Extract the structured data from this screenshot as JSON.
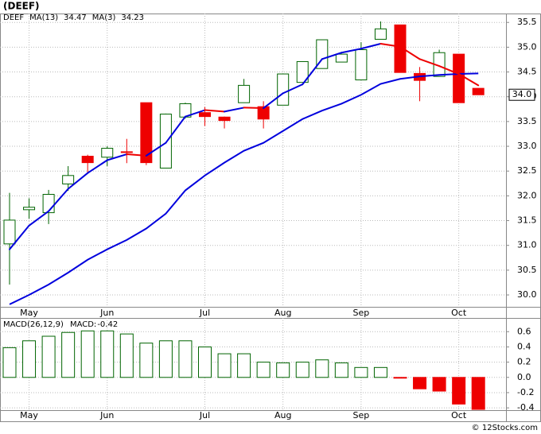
{
  "chart_data": [
    {
      "type": "candlestick",
      "title": "(DEEF)",
      "categories": [
        null,
        "May",
        null,
        null,
        null,
        "Jun",
        null,
        null,
        null,
        null,
        "Jul",
        null,
        null,
        null,
        "Aug",
        null,
        null,
        null,
        "Sep",
        null,
        null,
        null,
        null,
        "Oct",
        null
      ],
      "series": [
        {
          "name": "DEEF",
          "color": "#006400",
          "down_color": "#ee0000",
          "open": [
            31.03,
            31.72,
            31.66,
            32.24,
            32.8,
            32.78,
            32.89,
            33.88,
            32.56,
            33.59,
            33.68,
            33.59,
            33.88,
            33.8,
            33.83,
            34.29,
            34.57,
            34.7,
            34.34,
            35.16,
            35.45,
            34.47,
            34.41,
            34.86,
            34.17
          ],
          "high": [
            32.06,
            31.95,
            32.12,
            32.6,
            32.83,
            33.0,
            33.15,
            33.88,
            33.66,
            33.88,
            33.79,
            33.6,
            34.36,
            33.91,
            34.46,
            34.71,
            35.15,
            34.86,
            35.1,
            35.52,
            35.45,
            34.6,
            34.95,
            34.86,
            34.17
          ],
          "low": [
            30.21,
            31.54,
            31.43,
            32.1,
            32.45,
            32.6,
            32.66,
            32.62,
            32.56,
            33.56,
            33.41,
            33.36,
            33.88,
            33.36,
            33.83,
            34.29,
            34.57,
            34.7,
            34.34,
            35.16,
            34.49,
            33.91,
            34.41,
            33.88,
            34.04
          ],
          "close": [
            31.51,
            31.77,
            32.03,
            32.41,
            32.67,
            32.96,
            32.88,
            32.67,
            33.65,
            33.86,
            33.6,
            33.52,
            34.23,
            33.55,
            34.46,
            34.71,
            35.15,
            34.86,
            34.95,
            35.37,
            34.49,
            34.33,
            34.89,
            33.88,
            34.04
          ]
        },
        {
          "name": "MA(13)",
          "color": "#0000dd",
          "values": [
            29.81,
            30.0,
            30.21,
            30.45,
            30.71,
            30.92,
            31.11,
            31.34,
            31.64,
            32.11,
            32.41,
            32.67,
            32.91,
            33.07,
            33.31,
            33.55,
            33.72,
            33.86,
            34.04,
            34.26,
            34.36,
            34.41,
            34.44,
            34.46,
            34.47
          ]
        },
        {
          "name": "MA(3)",
          "color": "#0000dd",
          "down_color": "#ee0000",
          "values": [
            30.92,
            31.4,
            31.69,
            32.14,
            32.46,
            32.72,
            32.84,
            32.81,
            33.07,
            33.6,
            33.73,
            33.7,
            33.78,
            33.77,
            34.07,
            34.25,
            34.76,
            34.89,
            34.97,
            35.07,
            35.01,
            34.76,
            34.62,
            34.46,
            34.23
          ]
        }
      ],
      "last_price": {
        "value": 34.04,
        "label": "34.0"
      },
      "ylim": [
        29.76,
        35.68
      ],
      "yticks": [
        {
          "value": 30.0,
          "label": "30.0"
        },
        30.5,
        {
          "value": 31.0,
          "label": "31.0"
        },
        31.5,
        {
          "value": 32.0,
          "label": "32.0"
        },
        32.5,
        {
          "value": 33.0,
          "label": "33.0"
        },
        33.5,
        {
          "value": 34.0,
          "label": "34.0"
        },
        34.5,
        {
          "value": 35.0,
          "label": "35.0"
        },
        35.5
      ],
      "grid": true
    },
    {
      "type": "bar",
      "categories": [
        null,
        "May",
        null,
        null,
        null,
        "Jun",
        null,
        null,
        null,
        null,
        "Jul",
        null,
        null,
        null,
        "Aug",
        null,
        null,
        null,
        "Sep",
        null,
        null,
        null,
        null,
        "Oct",
        null
      ],
      "series": [
        {
          "name": "MACD(26,12,9)",
          "value_name": "MACD:",
          "color": "#006400",
          "down_color": "#ee0000",
          "values": [
            0.39,
            0.48,
            0.54,
            0.59,
            0.61,
            0.61,
            0.57,
            0.45,
            0.48,
            0.48,
            0.4,
            0.31,
            0.31,
            0.2,
            0.19,
            0.2,
            0.23,
            0.19,
            0.13,
            0.13,
            -0.01,
            -0.15,
            -0.18,
            -0.35,
            -0.42
          ]
        }
      ],
      "ylim": [
        -0.43,
        0.78
      ],
      "yticks": [
        0.6,
        0.4,
        0.2,
        {
          "value": 0,
          "label": "0.0"
        },
        -0.2,
        -0.4
      ],
      "grid": true
    },
    {
      "type": "note",
      "title": "© 12Stocks.com"
    }
  ]
}
